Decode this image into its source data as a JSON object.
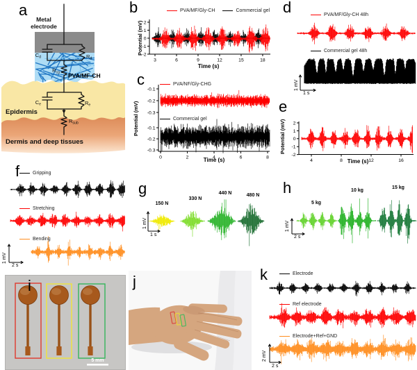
{
  "panels": {
    "a": {
      "label": "a",
      "electrode_line1": "Metal",
      "electrode_line2": "electrode",
      "gel_label": "PVA/MF-CH",
      "epidermis_label": "Epidermis",
      "dermis_label": "Dermis and deep tissues",
      "components": {
        "cd": {
          "s": "C",
          "sub": "d"
        },
        "rd": {
          "s": "R",
          "sub": "d"
        },
        "rcg": {
          "s": "R",
          "sub": "cg"
        },
        "ce": {
          "s": "C",
          "sub": "e"
        },
        "re": {
          "s": "R",
          "sub": "e"
        },
        "rsub": {
          "s": "R",
          "sub": "sub"
        }
      },
      "colors": {
        "electrode": "#8b8b8b",
        "gel_bg": "#aedcf5",
        "gel_fiber_dark": "#1a72c2",
        "gel_fiber_light": "#7fc4ec",
        "epidermis": "#f9e7a5",
        "dermis_top": "#dd8c5a",
        "dermis_bottom": "#fce7d2"
      }
    },
    "b": {
      "label": "b",
      "ylabel": "Potential (mV)",
      "xlabel": "Time (s)",
      "legend": [
        {
          "label": "PVA/MF/Gly-CH",
          "color": "#fe0000"
        },
        {
          "label": "Commercial gel",
          "color": "#000000"
        }
      ]
    },
    "c": {
      "label": "c",
      "ylabel": "Potential (mV)",
      "xlabel": "Time (s)",
      "legend_top": {
        "label": "PVA/NF/Gly-CHG",
        "color": "#fe0000"
      },
      "legend_bottom": {
        "label": "Commercial gel",
        "color": "#000000"
      }
    },
    "d": {
      "label": "d",
      "legend_top": {
        "label": "PVA/MF/Gly-CH 48h",
        "color": "#fe0000"
      },
      "legend_bottom": {
        "label": "Commercial gel 48h",
        "color": "#000000"
      },
      "scale_v": "1 mV",
      "scale_h": "1 s"
    },
    "e": {
      "label": "e",
      "ylabel": "Potential (mV)",
      "xlabel": "Time (s)",
      "trace_color": "#fe0000"
    },
    "f": {
      "label": "f",
      "scale_v": "1 mV",
      "scale_h": "2 s",
      "traces": [
        {
          "label": "Gripping",
          "color": "#000000"
        },
        {
          "label": "Stretching",
          "color": "#fe0000"
        },
        {
          "label": "Bending",
          "color": "#ff8d1e"
        }
      ]
    },
    "g": {
      "label": "g",
      "scale_v": "1 mV",
      "scale_h": "1 s",
      "bursts": [
        {
          "label": "150 N",
          "color": "#f0ea00"
        },
        {
          "label": "330 N",
          "color": "#7fdd2c"
        },
        {
          "label": "440 N",
          "color": "#2db42d"
        },
        {
          "label": "480 N",
          "color": "#1e6f33"
        }
      ]
    },
    "h": {
      "label": "h",
      "scale_v": "1 mV",
      "scale_h": "2 s",
      "groups": [
        {
          "label": "5 kg",
          "color": "#63d32c"
        },
        {
          "label": "10 kg",
          "color": "#27b327"
        },
        {
          "label": "15 kg",
          "color": "#1b7a3a"
        }
      ]
    },
    "i": {
      "label": "i",
      "scale_label": "5 mm",
      "background": "#c7c6c4",
      "electrode_color": "#a7591c",
      "box_colors": [
        "#e0392e",
        "#efe43a",
        "#35b45a"
      ]
    },
    "j": {
      "label": "j",
      "skin_color": "#d5a67f",
      "box_colors": [
        "#d94a40",
        "#e8d83c",
        "#4cb860"
      ]
    },
    "k": {
      "label": "k",
      "scale_v": "2 mV",
      "scale_h": "2 s",
      "traces": [
        {
          "label": "Electrode",
          "color": "#000000"
        },
        {
          "label": "Ref electrode",
          "color": "#fe0000"
        },
        {
          "label": "Electrode+Ref+GND",
          "color": "#ff8d1e"
        }
      ]
    }
  },
  "chart_data": {
    "b": {
      "type": "line",
      "xlabel": "Time (s)",
      "ylabel": "Potential (mV)",
      "xlim": [
        2.5,
        19.5
      ],
      "ylim": [
        -2.3,
        2.3
      ],
      "xticks": [
        3,
        6,
        9,
        12,
        15,
        18
      ],
      "yticks": [
        2,
        1,
        0,
        -1,
        -2
      ],
      "series": [
        {
          "name": "Commercial gel",
          "color": "#000000",
          "pattern": "emg_bursts",
          "n_bursts": 8,
          "first_s": 3.4,
          "period_s": 2.0,
          "burst_halfwidth_s": 0.45,
          "amp_mV": 1.35,
          "baseline_mV": 0.12
        },
        {
          "name": "PVA/MF/Gly-CH",
          "color": "#fe0000",
          "pattern": "emg_bursts",
          "n_bursts": 8,
          "first_s": 4.4,
          "period_s": 2.0,
          "burst_halfwidth_s": 0.5,
          "amp_mV": 1.9,
          "baseline_mV": 0.18
        }
      ]
    },
    "c": {
      "type": "line",
      "xlabel": "Time (s)",
      "ylabel": "Potential (mV)",
      "xlim": [
        0,
        8
      ],
      "xticks": [
        0,
        2,
        4,
        6,
        8
      ],
      "subplots": [
        {
          "name": "PVA/NF/Gly-CHG",
          "color": "#fe0000",
          "pattern": "noise",
          "yticks": [
            -0.1,
            -0.2,
            -0.3
          ],
          "mean_mV": -0.2,
          "peak_to_peak_mV": 0.13
        },
        {
          "name": "Commercial gel",
          "color": "#000000",
          "pattern": "noise",
          "yticks": [
            -0.1,
            -0.2,
            -0.3
          ],
          "mean_mV": -0.18,
          "peak_to_peak_mV": 0.25
        }
      ]
    },
    "d": {
      "type": "line",
      "scale": {
        "v_mV": 1,
        "h_s": 1
      },
      "series": [
        {
          "name": "PVA/MF/Gly-CH 48h",
          "color": "#fe0000",
          "pattern": "emg_bursts",
          "n_bursts": 6,
          "amp_mV": 0.8,
          "baseline_mV": 0.1
        },
        {
          "name": "Commercial gel 48h",
          "color": "#000000",
          "pattern": "saturated_noise",
          "amp_mV": 2.0
        }
      ]
    },
    "e": {
      "type": "line",
      "xlabel": "Time (s)",
      "ylabel": "Potential (mV)",
      "xlim": [
        2.8,
        18.2
      ],
      "ylim": [
        -2.3,
        2.3
      ],
      "xticks": [
        4,
        8,
        12,
        16
      ],
      "yticks": [
        2,
        1,
        0,
        -1,
        -2
      ],
      "series": [
        {
          "name": "PVA/MF/Gly-CH",
          "color": "#fe0000",
          "pattern": "emg_bursts",
          "n_bursts": 10,
          "first_s": 4.0,
          "period_s": 1.5,
          "burst_halfwidth_s": 0.33,
          "amp_mV": 1.85,
          "baseline_mV": 0.25
        }
      ]
    },
    "f": {
      "type": "line",
      "scale": {
        "v_mV": 1,
        "h_s": 2
      },
      "series": [
        {
          "name": "Gripping",
          "color": "#000000",
          "pattern": "emg_bursts",
          "n_bursts": 10,
          "amp_mV": 0.58,
          "baseline_mV": 0.05
        },
        {
          "name": "Stretching",
          "color": "#fe0000",
          "pattern": "emg_bursts",
          "n_bursts": 10,
          "amp_mV": 0.42,
          "baseline_mV": 0.11
        },
        {
          "name": "Bending",
          "color": "#ff8d1e",
          "pattern": "emg_bursts",
          "n_bursts": 9,
          "amp_mV": 0.55,
          "baseline_mV": 0.18
        }
      ]
    },
    "g": {
      "type": "line",
      "scale": {
        "v_mV": 1,
        "h_s": 1
      },
      "series": [
        {
          "name": "150 N",
          "color": "#f0ea00",
          "pattern": "single_burst",
          "amp_mV": 0.45
        },
        {
          "name": "330 N",
          "color": "#7fdd2c",
          "pattern": "single_burst",
          "amp_mV": 0.65
        },
        {
          "name": "440 N",
          "color": "#2db42d",
          "pattern": "single_burst",
          "amp_mV": 1.2
        },
        {
          "name": "480 N",
          "color": "#1e6f33",
          "pattern": "single_burst",
          "amp_mV": 1.05
        }
      ]
    },
    "h": {
      "type": "line",
      "scale": {
        "v_mV": 1,
        "h_s": 2
      },
      "series": [
        {
          "name": "5 kg",
          "color": "#63d32c",
          "pattern": "burst_group",
          "n_bursts": 4,
          "amp_mV": 0.65
        },
        {
          "name": "10 kg",
          "color": "#27b327",
          "pattern": "burst_group",
          "n_bursts": 4,
          "amp_mV": 1.45
        },
        {
          "name": "15 kg",
          "color": "#1b7a3a",
          "pattern": "burst_group",
          "n_bursts": 4,
          "amp_mV": 1.55
        }
      ]
    },
    "k": {
      "type": "line",
      "scale": {
        "v_mV": 2,
        "h_s": 2
      },
      "series": [
        {
          "name": "Electrode",
          "color": "#000000",
          "pattern": "emg_bursts",
          "n_bursts": 11,
          "amp_mV": 0.85,
          "baseline_mV": 0.08
        },
        {
          "name": "Ref electrode",
          "color": "#fe0000",
          "pattern": "emg_bursts",
          "n_bursts": 10,
          "amp_mV": 1.1,
          "baseline_mV": 0.3
        },
        {
          "name": "Electrode+Ref+GND",
          "color": "#ff8d1e",
          "pattern": "emg_bursts",
          "n_bursts": 10,
          "amp_mV": 1.15,
          "baseline_mV": 0.35
        }
      ]
    }
  }
}
